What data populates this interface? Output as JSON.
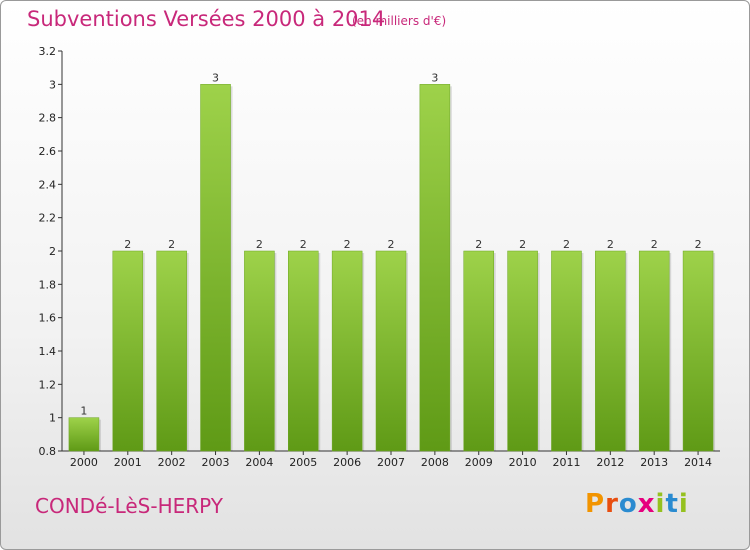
{
  "header": {
    "title": "Subventions Versées 2000 à 2014",
    "unit": "(en milliers d'€)"
  },
  "footer": {
    "commune": "CONDé-LèS-HERPY",
    "logo_letters": [
      "P",
      "r",
      "o",
      "x",
      "i",
      "t",
      "i"
    ]
  },
  "colors": {
    "accent": "#c8287a",
    "bar_light": "#9ed24a",
    "bar_dark": "#5f9a16",
    "logo": [
      "#f29400",
      "#e84e0f",
      "#2a8bd0",
      "#e6007e",
      "#95c11f",
      "#2a8bd0",
      "#95c11f"
    ]
  },
  "chart_data": {
    "type": "bar",
    "title": "Subventions Versées 2000 à 2014",
    "categories": [
      "2000",
      "2001",
      "2002",
      "2003",
      "2004",
      "2005",
      "2006",
      "2007",
      "2008",
      "2009",
      "2010",
      "2011",
      "2012",
      "2013",
      "2014"
    ],
    "values": [
      1,
      2,
      2,
      3,
      2,
      2,
      2,
      2,
      3,
      2,
      2,
      2,
      2,
      2,
      2
    ],
    "ylim": [
      0.8,
      3.2
    ],
    "yticks": [
      "0.8",
      "1",
      "1.2",
      "1.4",
      "1.6",
      "1.8",
      "2",
      "2.2",
      "2.4",
      "2.6",
      "2.8",
      "3",
      "3.2"
    ],
    "xlabel": "",
    "ylabel": "",
    "grid": false,
    "legend": "none"
  }
}
